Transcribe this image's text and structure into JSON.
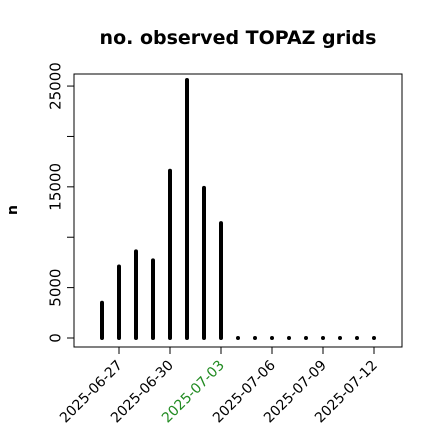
{
  "chart_data": {
    "type": "bar",
    "title": "no. observed TOPAZ grids",
    "ylabel": "n",
    "xlabel": "",
    "x": [
      "2025-06-26",
      "2025-06-27",
      "2025-06-28",
      "2025-06-29",
      "2025-06-30",
      "2025-07-01",
      "2025-07-02",
      "2025-07-03",
      "2025-07-04",
      "2025-07-05",
      "2025-07-06",
      "2025-07-07",
      "2025-07-08",
      "2025-07-09",
      "2025-07-10",
      "2025-07-11",
      "2025-07-12"
    ],
    "values": [
      3500,
      7100,
      8600,
      7700,
      16600,
      25600,
      14900,
      11400,
      0,
      0,
      0,
      0,
      0,
      0,
      0,
      0,
      0
    ],
    "ylim": [
      0,
      25800
    ],
    "yticks": [
      "0",
      "5000",
      "15000",
      "25000"
    ],
    "xticks": [
      "2025-06-27",
      "2025-06-30",
      "2025-07-03",
      "2025-07-06",
      "2025-07-09",
      "2025-07-12"
    ],
    "xtick_colors": [
      "#000000",
      "#000000",
      "#228B22",
      "#000000",
      "#000000",
      "#000000"
    ],
    "grid": false,
    "bar_color": "#000000"
  }
}
